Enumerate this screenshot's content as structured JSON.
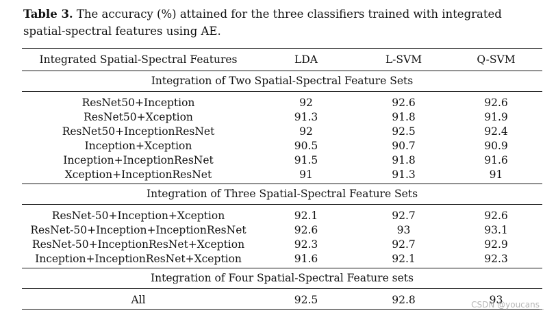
{
  "caption": {
    "label": "Table 3.",
    "text": " The accuracy (%) attained for the three classifiers trained with integrated spatial-spectral features using AE."
  },
  "table": {
    "headers": [
      "Integrated Spatial-Spectral Features",
      "LDA",
      "L-SVM",
      "Q-SVM"
    ],
    "sections": [
      {
        "title": "Integration of Two Spatial-Spectral Feature Sets",
        "rows": [
          [
            "ResNet50+Inception",
            "92",
            "92.6",
            "92.6"
          ],
          [
            "ResNet50+Xception",
            "91.3",
            "91.8",
            "91.9"
          ],
          [
            "ResNet50+InceptionResNet",
            "92",
            "92.5",
            "92.4"
          ],
          [
            "Inception+Xception",
            "90.5",
            "90.7",
            "90.9"
          ],
          [
            "Inception+InceptionResNet",
            "91.5",
            "91.8",
            "91.6"
          ],
          [
            "Xception+InceptionResNet",
            "91",
            "91.3",
            "91"
          ]
        ]
      },
      {
        "title": "Integration of Three Spatial-Spectral Feature Sets",
        "rows": [
          [
            "ResNet-50+Inception+Xception",
            "92.1",
            "92.7",
            "92.6"
          ],
          [
            "ResNet-50+Inception+InceptionResNet",
            "92.6",
            "93",
            "93.1"
          ],
          [
            "ResNet-50+InceptionResNet+Xception",
            "92.3",
            "92.7",
            "92.9"
          ],
          [
            "Inception+InceptionResNet+Xception",
            "91.6",
            "92.1",
            "92.3"
          ]
        ]
      },
      {
        "title": "Integration of Four Spatial-Spectral Feature sets",
        "rows": [
          [
            "All",
            "92.5",
            "92.8",
            "93"
          ]
        ]
      }
    ]
  },
  "watermark": "CSDN @youcans_"
}
